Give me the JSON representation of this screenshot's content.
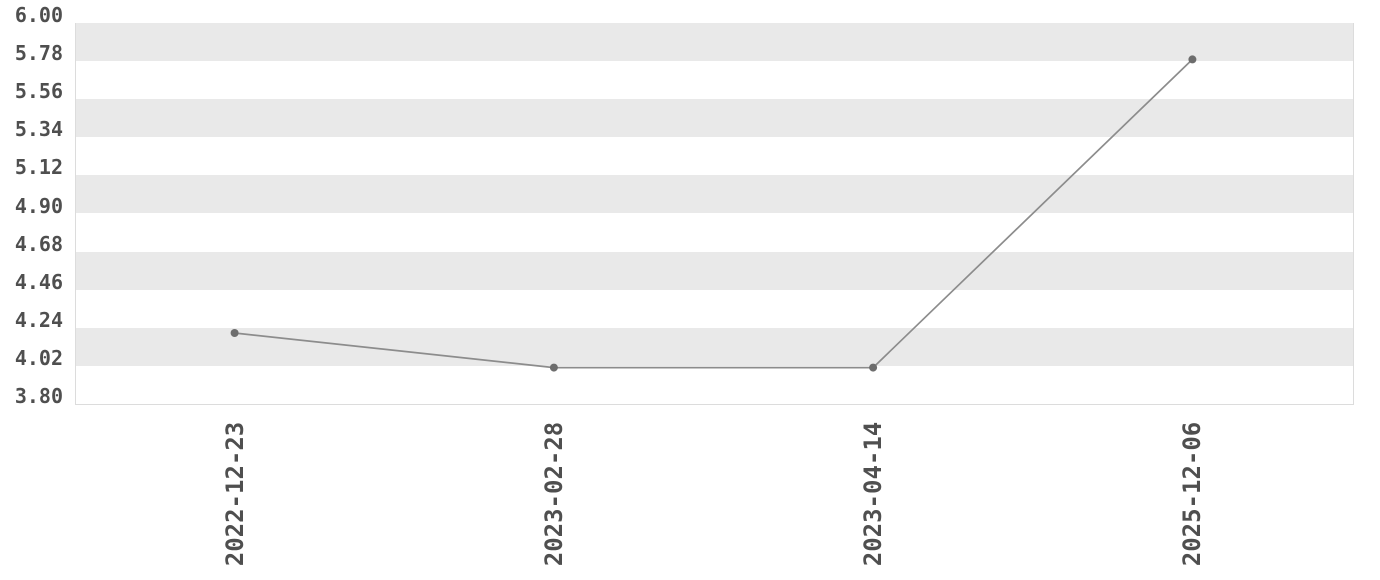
{
  "chart_data": {
    "type": "line",
    "title": "",
    "xlabel": "",
    "ylabel": "",
    "categories": [
      "2022-12-23",
      "2023-02-28",
      "2023-04-14",
      "2025-12-06"
    ],
    "values": [
      4.21,
      4.01,
      4.01,
      5.79
    ],
    "ylim": [
      3.8,
      6.0
    ],
    "yticks": [
      "6.00",
      "5.78",
      "5.56",
      "5.34",
      "5.12",
      "4.90",
      "4.68",
      "4.46",
      "4.24",
      "4.02",
      "3.80"
    ],
    "grid": "horizontal alternating stripe bands, no vertical gridlines",
    "legend": false,
    "marker": "filled circle"
  },
  "colors": {
    "background": "#ffffff",
    "band_gray": "#e9e9e9",
    "band_white": "#ffffff",
    "plot_border": "#dcdcdc",
    "axis_text": "#4f4f4f",
    "line": "#8c8c8c",
    "marker": "#6d6d6d"
  }
}
